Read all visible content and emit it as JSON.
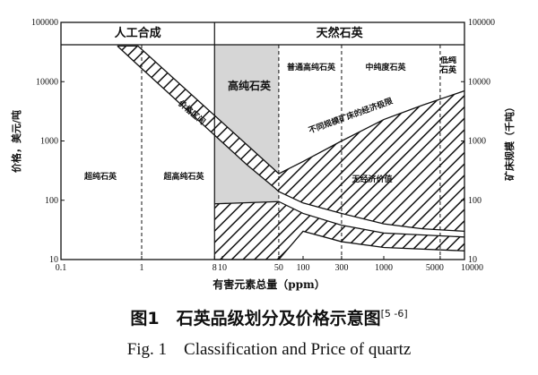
{
  "chart_data": {
    "type": "log-band",
    "header": [
      "人工合成",
      "天然石英"
    ],
    "header_split": 8,
    "xlabel": "有害元素总量（ppm）",
    "ylabel": "价格，美元/吨",
    "y2label": "矿床规模（千吨）",
    "xlim": [
      0.1,
      10000
    ],
    "xticks": [
      0.1,
      1,
      8,
      10,
      50,
      100,
      300,
      1000,
      5000,
      10000
    ],
    "ylim": [
      10,
      100000
    ],
    "yticks": [
      10,
      100,
      1000,
      10000,
      100000
    ],
    "y2lim": [
      10,
      100000
    ],
    "y2ticks": [
      10,
      100,
      1000,
      10000,
      100000
    ],
    "log_x": true,
    "log_y": true,
    "dividers": [
      1,
      8,
      50,
      300,
      5000
    ],
    "highlight": {
      "x": [
        8,
        50
      ],
      "color": "#d6d6d6"
    },
    "region_labels": [
      "超纯石英",
      "超高纯石英",
      "高纯石英",
      "普通高纯石英",
      "中纯度石英",
      "低纯石英"
    ],
    "annotation": "无经济价值",
    "areas": [
      {
        "name": "价格区间",
        "econ_name": "不同规模矿床的经济极限",
        "x": [
          0.5,
          0.9,
          5,
          20,
          45,
          50,
          100,
          300,
          1000,
          3000,
          10000
        ],
        "upper": [
          40000,
          40000,
          4800,
          870,
          320,
          280,
          450,
          1000,
          2300,
          4000,
          7000
        ],
        "lower": [
          40000,
          19000,
          2250,
          400,
          160,
          140,
          90,
          60,
          40,
          33,
          30
        ]
      },
      {
        "x": [
          8,
          50,
          100,
          300,
          1000,
          10000
        ],
        "upper": [
          87,
          95,
          60,
          38,
          28,
          24
        ],
        "lower": [
          10,
          10,
          30,
          20,
          16,
          14
        ]
      }
    ],
    "caption": "图1　石英品级划分及价格示意图",
    "caption_ref": "[5 -6]",
    "caption_en": "Fig. 1　Classification and Price of quartz"
  }
}
